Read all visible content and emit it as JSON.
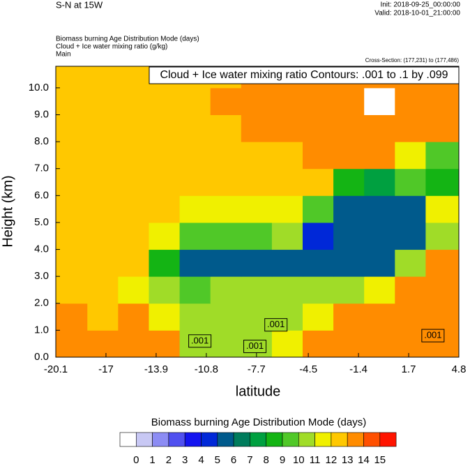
{
  "chart_data": {
    "type": "contour",
    "title": "S-N at 15W",
    "init": "Init: 2018-09-25_00:00:00",
    "valid": "Valid: 2018-10-01_21:00:00",
    "subtitles": [
      "Biomass burning Age Distribution Mode   (days)",
      "Cloud + Ice water mixing ratio   (g/kg)",
      "Main"
    ],
    "cross_section": "Cross-Section: (177,231) to (177,486)",
    "annotation": "Cloud + Ice water mixing ratio Contours: .001 to .1 by .099",
    "x_label": "latitude",
    "y_label": "Height (km)",
    "xlim": [
      -20.1,
      4.8
    ],
    "ylim": [
      0,
      10.8
    ],
    "xticks": [
      -20.1,
      -17.0,
      -13.9,
      -10.8,
      -7.7,
      -4.5,
      -1.4,
      1.7,
      4.8
    ],
    "yticks": [
      {
        "value": 0,
        "label": "0.0"
      },
      {
        "value": 1,
        "label": "1.0"
      },
      {
        "value": 2,
        "label": "2.0"
      },
      {
        "value": 3,
        "label": "3.0"
      },
      {
        "value": 4,
        "label": "4.0"
      },
      {
        "value": 5,
        "label": "5.0"
      },
      {
        "value": 6,
        "label": "6.0"
      },
      {
        "value": 7,
        "label": "7.0"
      },
      {
        "value": 8,
        "label": "8.0"
      },
      {
        "value": 9,
        "label": "9.0"
      },
      {
        "value": 10,
        "label": "10.0"
      }
    ],
    "x": [
      -19.1,
      -17.2,
      -15.3,
      -13.4,
      -11.5,
      -9.6,
      -7.7,
      -5.8,
      -3.9,
      -2.0,
      -0.1,
      1.8,
      3.7
    ],
    "y": [
      0.5,
      1.5,
      2.5,
      3.5,
      4.5,
      5.5,
      6.5,
      7.5,
      8.5,
      9.5,
      10.5
    ],
    "z": [
      [
        13.5,
        13.5,
        13.5,
        13.5,
        10.5,
        10.5,
        10.5,
        11.5,
        13.5,
        13.5,
        13.5,
        13.5,
        13.5
      ],
      [
        13.5,
        12.5,
        13.5,
        11.5,
        10.5,
        10.5,
        10.5,
        10.5,
        11.5,
        13.5,
        13.5,
        13.5,
        13.5
      ],
      [
        12.5,
        12.5,
        11.5,
        10.5,
        9.5,
        10.5,
        10.5,
        10.5,
        10.5,
        10.5,
        11.5,
        13.5,
        13.5
      ],
      [
        12.5,
        12.5,
        12.5,
        8.5,
        5.5,
        5.5,
        5.5,
        5.5,
        5.5,
        5.5,
        5.5,
        10.5,
        13.5
      ],
      [
        12.5,
        12.5,
        12.5,
        11.5,
        9.5,
        9.5,
        9.5,
        10.5,
        4.5,
        5.5,
        5.5,
        5.5,
        10.5
      ],
      [
        12.5,
        12.5,
        12.5,
        12.5,
        11.5,
        11.5,
        11.5,
        11.5,
        9.5,
        5.5,
        5.5,
        5.5,
        11.5
      ],
      [
        12.5,
        12.5,
        12.5,
        12.5,
        12.5,
        12.5,
        12.5,
        12.5,
        12.5,
        8.5,
        7.5,
        9.5,
        8.5
      ],
      [
        12.5,
        12.5,
        12.5,
        12.5,
        12.5,
        12.5,
        12.5,
        12.5,
        13.5,
        13.5,
        13.5,
        11.5,
        9.5
      ],
      [
        12.5,
        12.5,
        12.5,
        12.5,
        12.5,
        12.5,
        13.5,
        13.5,
        13.5,
        13.5,
        13.5,
        13.5,
        13.5
      ],
      [
        12.5,
        12.5,
        12.5,
        12.5,
        12.5,
        13.5,
        13.5,
        13.5,
        13.5,
        13.5,
        null,
        13.5,
        13.5
      ],
      [
        12.5,
        12.5,
        12.5,
        12.5,
        12.5,
        12.5,
        13.5,
        13.5,
        13.5,
        13.5,
        13.5,
        13.5,
        13.5
      ]
    ],
    "contour_labels": [
      {
        "text": ".001",
        "x": -11.2,
        "y": 0.6
      },
      {
        "text": ".001",
        "x": -7.8,
        "y": 0.4
      },
      {
        "text": ".001",
        "x": -6.5,
        "y": 1.2
      },
      {
        "text": ".001",
        "x": 3.2,
        "y": 0.8
      }
    ],
    "colorbar": {
      "title": "Biomass burning Age Distribution Mode  (days)",
      "levels": [
        0,
        1,
        2,
        3,
        4,
        5,
        6,
        7,
        8,
        9,
        10,
        11,
        12,
        13,
        14,
        15
      ],
      "colors": [
        "#ffffff",
        "#c8c8f4",
        "#8c8cf4",
        "#5050f0",
        "#1414f0",
        "#0028d8",
        "#005a8c",
        "#007c5c",
        "#00a040",
        "#14b414",
        "#50c828",
        "#a0dc28",
        "#f0f000",
        "#ffc800",
        "#ff8c00",
        "#ff5000",
        "#ff1400"
      ]
    }
  }
}
